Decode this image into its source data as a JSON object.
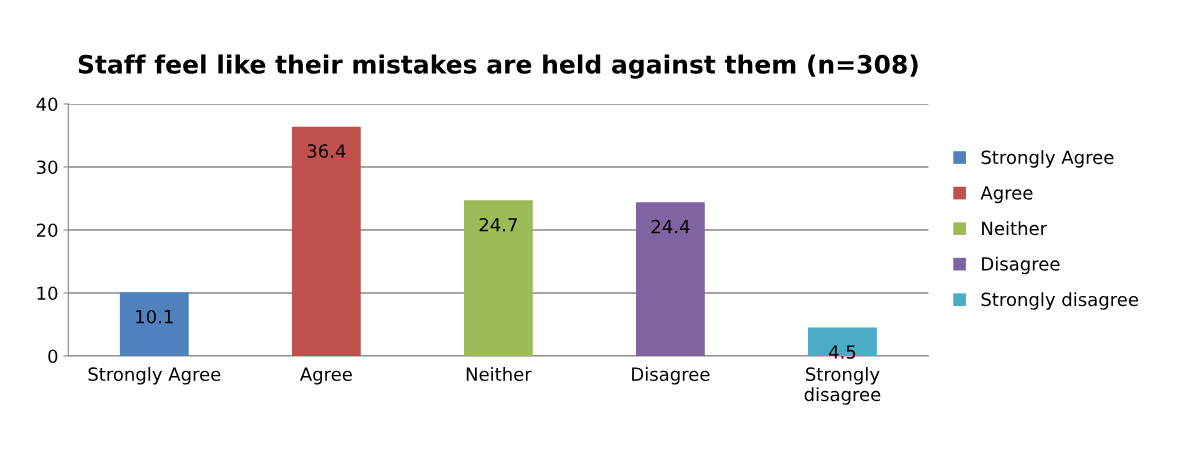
{
  "chart_data": {
    "type": "bar",
    "title": "Staff feel like their mistakes are held against them (n=308)",
    "categories": [
      "Strongly Agree",
      "Agree",
      "Neither",
      "Disagree",
      "Strongly disagree"
    ],
    "series": [
      {
        "name": "Strongly Agree",
        "color": "#4f81bd",
        "values": [
          10.1,
          null,
          null,
          null,
          null
        ]
      },
      {
        "name": "Agree",
        "color": "#c0504d",
        "values": [
          null,
          36.4,
          null,
          null,
          null
        ]
      },
      {
        "name": "Neither",
        "color": "#9bbb59",
        "values": [
          null,
          null,
          24.7,
          null,
          null
        ]
      },
      {
        "name": "Disagree",
        "color": "#8064a2",
        "values": [
          null,
          null,
          null,
          24.4,
          null
        ]
      },
      {
        "name": "Strongly disagree",
        "color": "#4bacc6",
        "values": [
          null,
          null,
          null,
          null,
          4.5
        ]
      }
    ],
    "ylim": [
      0,
      40
    ],
    "yticks": [
      0,
      10,
      20,
      30,
      40
    ],
    "grid": "y",
    "legend": "right",
    "data_labels": true
  }
}
